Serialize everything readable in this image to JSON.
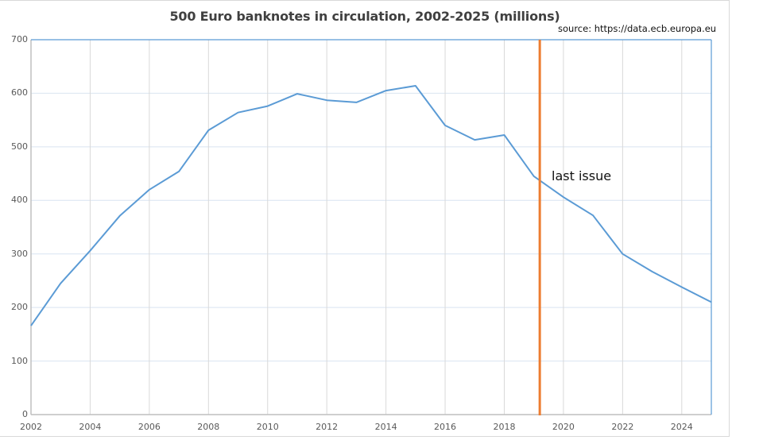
{
  "chart_data": {
    "type": "line",
    "title": "500 Euro banknotes in circulation, 2002-2025 (millions)",
    "source_note": "source: https://data.ecb.europa.eu",
    "xlabel": "",
    "ylabel": "",
    "x": [
      2002,
      2003,
      2004,
      2005,
      2006,
      2007,
      2008,
      2009,
      2010,
      2011,
      2012,
      2013,
      2014,
      2015,
      2016,
      2017,
      2018,
      2019,
      2020,
      2021,
      2022,
      2023,
      2024,
      2025
    ],
    "series": [
      {
        "name": "500 Euro banknotes (millions)",
        "color": "#5b9bd5",
        "values": [
          166,
          245,
          306,
          371,
          420,
          454,
          531,
          564,
          576,
          599,
          587,
          583,
          605,
          614,
          540,
          513,
          522,
          445,
          406,
          372,
          300,
          267,
          238,
          210
        ]
      }
    ],
    "xlim": [
      2002,
      2025
    ],
    "ylim": [
      0,
      700
    ],
    "x_ticks": [
      "2002",
      "2004",
      "2006",
      "2008",
      "2010",
      "2012",
      "2014",
      "2016",
      "2018",
      "2020",
      "2022",
      "2024"
    ],
    "y_ticks": [
      "0",
      "100",
      "200",
      "300",
      "400",
      "500",
      "600",
      "700"
    ],
    "grid": true,
    "legend": "none",
    "annotations": [
      {
        "type": "vertical-line",
        "x": 2019.2,
        "color": "#ed7d31",
        "label": "last issue"
      }
    ]
  },
  "ui": {
    "title": "500 Euro banknotes in circulation, 2002-2025 (millions)",
    "source": "source: https://data.ecb.europa.eu",
    "annotation_label": "last issue",
    "line_color": "#5b9bd5",
    "marker_color": "#ed7d31",
    "grid_color": "#d9e4f1"
  }
}
